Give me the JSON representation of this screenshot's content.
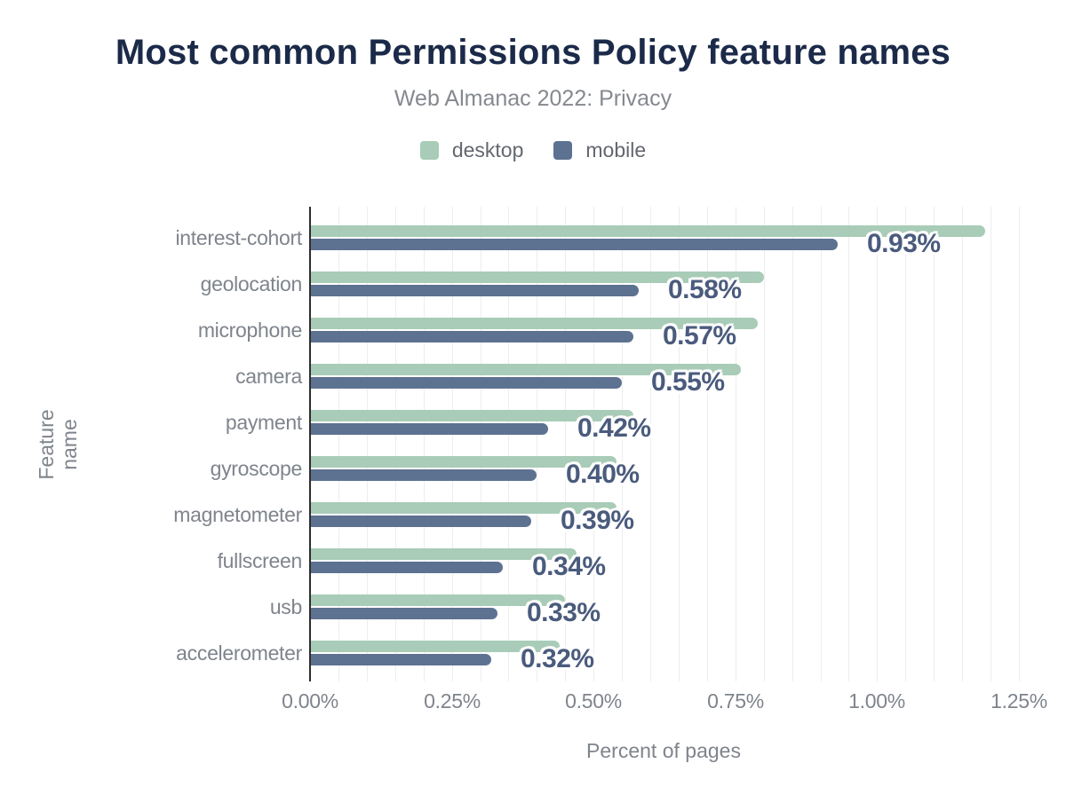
{
  "colors": {
    "title_color": "#1b2a49",
    "subtitle_color": "#85898f",
    "desktop_bar": "#a8ccb7",
    "mobile_bar": "#5d7191",
    "value_label": "#4a5b7d",
    "axis_text": "#7f848c",
    "axis_line": "#2e2e2e",
    "gridline": "#ededf0",
    "legend_text": "#63676e"
  },
  "chart_data": {
    "type": "bar",
    "orientation": "horizontal",
    "title": "Most common Permissions Policy feature names",
    "subtitle": "Web Almanac 2022: Privacy",
    "xlabel": "Percent of pages",
    "ylabel": "Feature name",
    "xlim": [
      0,
      1.25
    ],
    "x_tick_labels": [
      "0.00%",
      "0.25%",
      "0.50%",
      "0.75%",
      "1.00%",
      "1.25%"
    ],
    "grid_step_percent": 0.05,
    "grid": "vertical-minor",
    "legend_position": "top",
    "categories": [
      "interest-cohort",
      "geolocation",
      "microphone",
      "camera",
      "payment",
      "gyroscope",
      "magnetometer",
      "fullscreen",
      "usb",
      "accelerometer"
    ],
    "series": [
      {
        "name": "desktop",
        "values": [
          1.19,
          0.8,
          0.79,
          0.76,
          0.57,
          0.54,
          0.54,
          0.47,
          0.45,
          0.44
        ]
      },
      {
        "name": "mobile",
        "values": [
          0.93,
          0.58,
          0.57,
          0.55,
          0.42,
          0.4,
          0.39,
          0.34,
          0.33,
          0.32
        ]
      }
    ],
    "bar_value_labels": [
      "0.93%",
      "0.58%",
      "0.57%",
      "0.55%",
      "0.42%",
      "0.40%",
      "0.39%",
      "0.34%",
      "0.33%",
      "0.32%"
    ],
    "value_labels_series": "mobile"
  }
}
